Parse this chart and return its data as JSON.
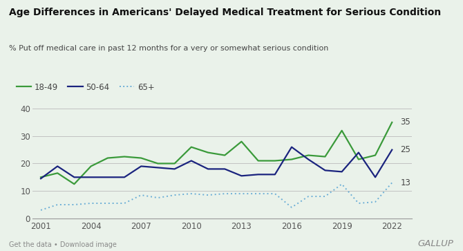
{
  "title": "Age Differences in Americans' Delayed Medical Treatment for Serious Condition",
  "subtitle": "% Put off medical care in past 12 months for a very or somewhat serious condition",
  "background_color": "#eaf2ea",
  "plot_bg_color": "#eaf2ea",
  "years_18_49": [
    2001,
    2002,
    2003,
    2004,
    2005,
    2006,
    2007,
    2008,
    2009,
    2010,
    2011,
    2012,
    2013,
    2014,
    2015,
    2016,
    2017,
    2018,
    2019,
    2020,
    2021,
    2022
  ],
  "values_18_49": [
    15,
    16.5,
    12.5,
    19,
    22,
    22.5,
    22,
    20,
    20,
    26,
    24,
    23,
    28,
    21,
    21,
    21.5,
    23,
    22.5,
    32,
    21.5,
    23,
    35
  ],
  "years_50_64": [
    2001,
    2002,
    2003,
    2004,
    2005,
    2006,
    2007,
    2008,
    2009,
    2010,
    2011,
    2012,
    2013,
    2014,
    2015,
    2016,
    2017,
    2018,
    2019,
    2020,
    2021,
    2022
  ],
  "values_50_64": [
    14.5,
    19,
    15,
    15,
    15,
    15,
    19,
    18.5,
    18,
    21,
    18,
    18,
    15.5,
    16,
    16,
    26,
    21.5,
    17.5,
    17,
    24,
    15,
    25
  ],
  "years_65p": [
    2001,
    2002,
    2003,
    2004,
    2005,
    2006,
    2007,
    2008,
    2009,
    2010,
    2011,
    2012,
    2013,
    2014,
    2015,
    2016,
    2017,
    2018,
    2019,
    2020,
    2021,
    2022
  ],
  "values_65p": [
    3,
    5,
    5,
    5.5,
    5.5,
    5.5,
    8.5,
    7.5,
    8.5,
    9,
    8.5,
    9,
    9,
    9,
    9,
    4,
    8,
    8,
    12.5,
    5.5,
    6,
    13
  ],
  "color_18_49": "#3a9a3a",
  "color_50_64": "#1a237e",
  "color_65p": "#6baed6",
  "legend_labels": [
    "18-49",
    "50-64",
    "65+"
  ],
  "yticks": [
    0,
    10,
    20,
    30,
    40
  ],
  "xticks": [
    2001,
    2004,
    2007,
    2010,
    2013,
    2016,
    2019,
    2022
  ],
  "ylim": [
    0,
    43
  ],
  "xlim": [
    2000.5,
    2023.2
  ],
  "footer_left": "Get the data • Download image",
  "footer_right": "GALLUP",
  "end_labels": {
    "18_49": 35,
    "50_64": 25,
    "65p": 13
  }
}
